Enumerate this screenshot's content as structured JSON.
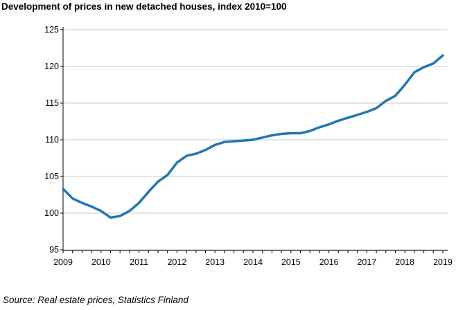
{
  "chart_data": {
    "type": "line",
    "title": "Development of prices in new detached houses, index 2010=100",
    "source": "Source: Real estate prices, Statistics Finland",
    "xlabel": "",
    "ylabel": "",
    "xlim": [
      2009,
      2019
    ],
    "ylim": [
      95,
      125
    ],
    "x_ticks": [
      "2009",
      "2010",
      "2011",
      "2012",
      "2013",
      "2014",
      "2015",
      "2016",
      "2017",
      "2018",
      "2019"
    ],
    "y_ticks": [
      "95",
      "100",
      "105",
      "110",
      "115",
      "120",
      "125"
    ],
    "grid": "horizontal",
    "line_color": "#1f77b4",
    "series": [
      {
        "x": [
          2009,
          2009.25,
          2009.5,
          2009.75,
          2010,
          2010.25,
          2010.5,
          2010.75,
          2011,
          2011.25,
          2011.5,
          2011.75,
          2012,
          2012.25,
          2012.5,
          2012.75,
          2013,
          2013.25,
          2013.5,
          2013.75,
          2014,
          2014.25,
          2014.5,
          2014.75,
          2015,
          2015.25,
          2015.5,
          2015.75,
          2016,
          2016.25,
          2016.5,
          2016.75,
          2017,
          2017.25,
          2017.5,
          2017.75,
          2018,
          2018.25,
          2018.5,
          2018.75,
          2019
        ],
        "values": [
          103.3,
          102.0,
          101.4,
          100.9,
          100.3,
          99.4,
          99.6,
          100.3,
          101.4,
          102.9,
          104.3,
          105.2,
          106.9,
          107.8,
          108.1,
          108.6,
          109.3,
          109.7,
          109.8,
          109.9,
          110.0,
          110.3,
          110.6,
          110.8,
          110.9,
          110.9,
          111.2,
          111.7,
          112.1,
          112.6,
          113.0,
          113.4,
          113.8,
          114.3,
          115.3,
          116.0,
          117.5,
          119.2,
          119.9,
          120.4,
          121.5
        ]
      }
    ]
  }
}
